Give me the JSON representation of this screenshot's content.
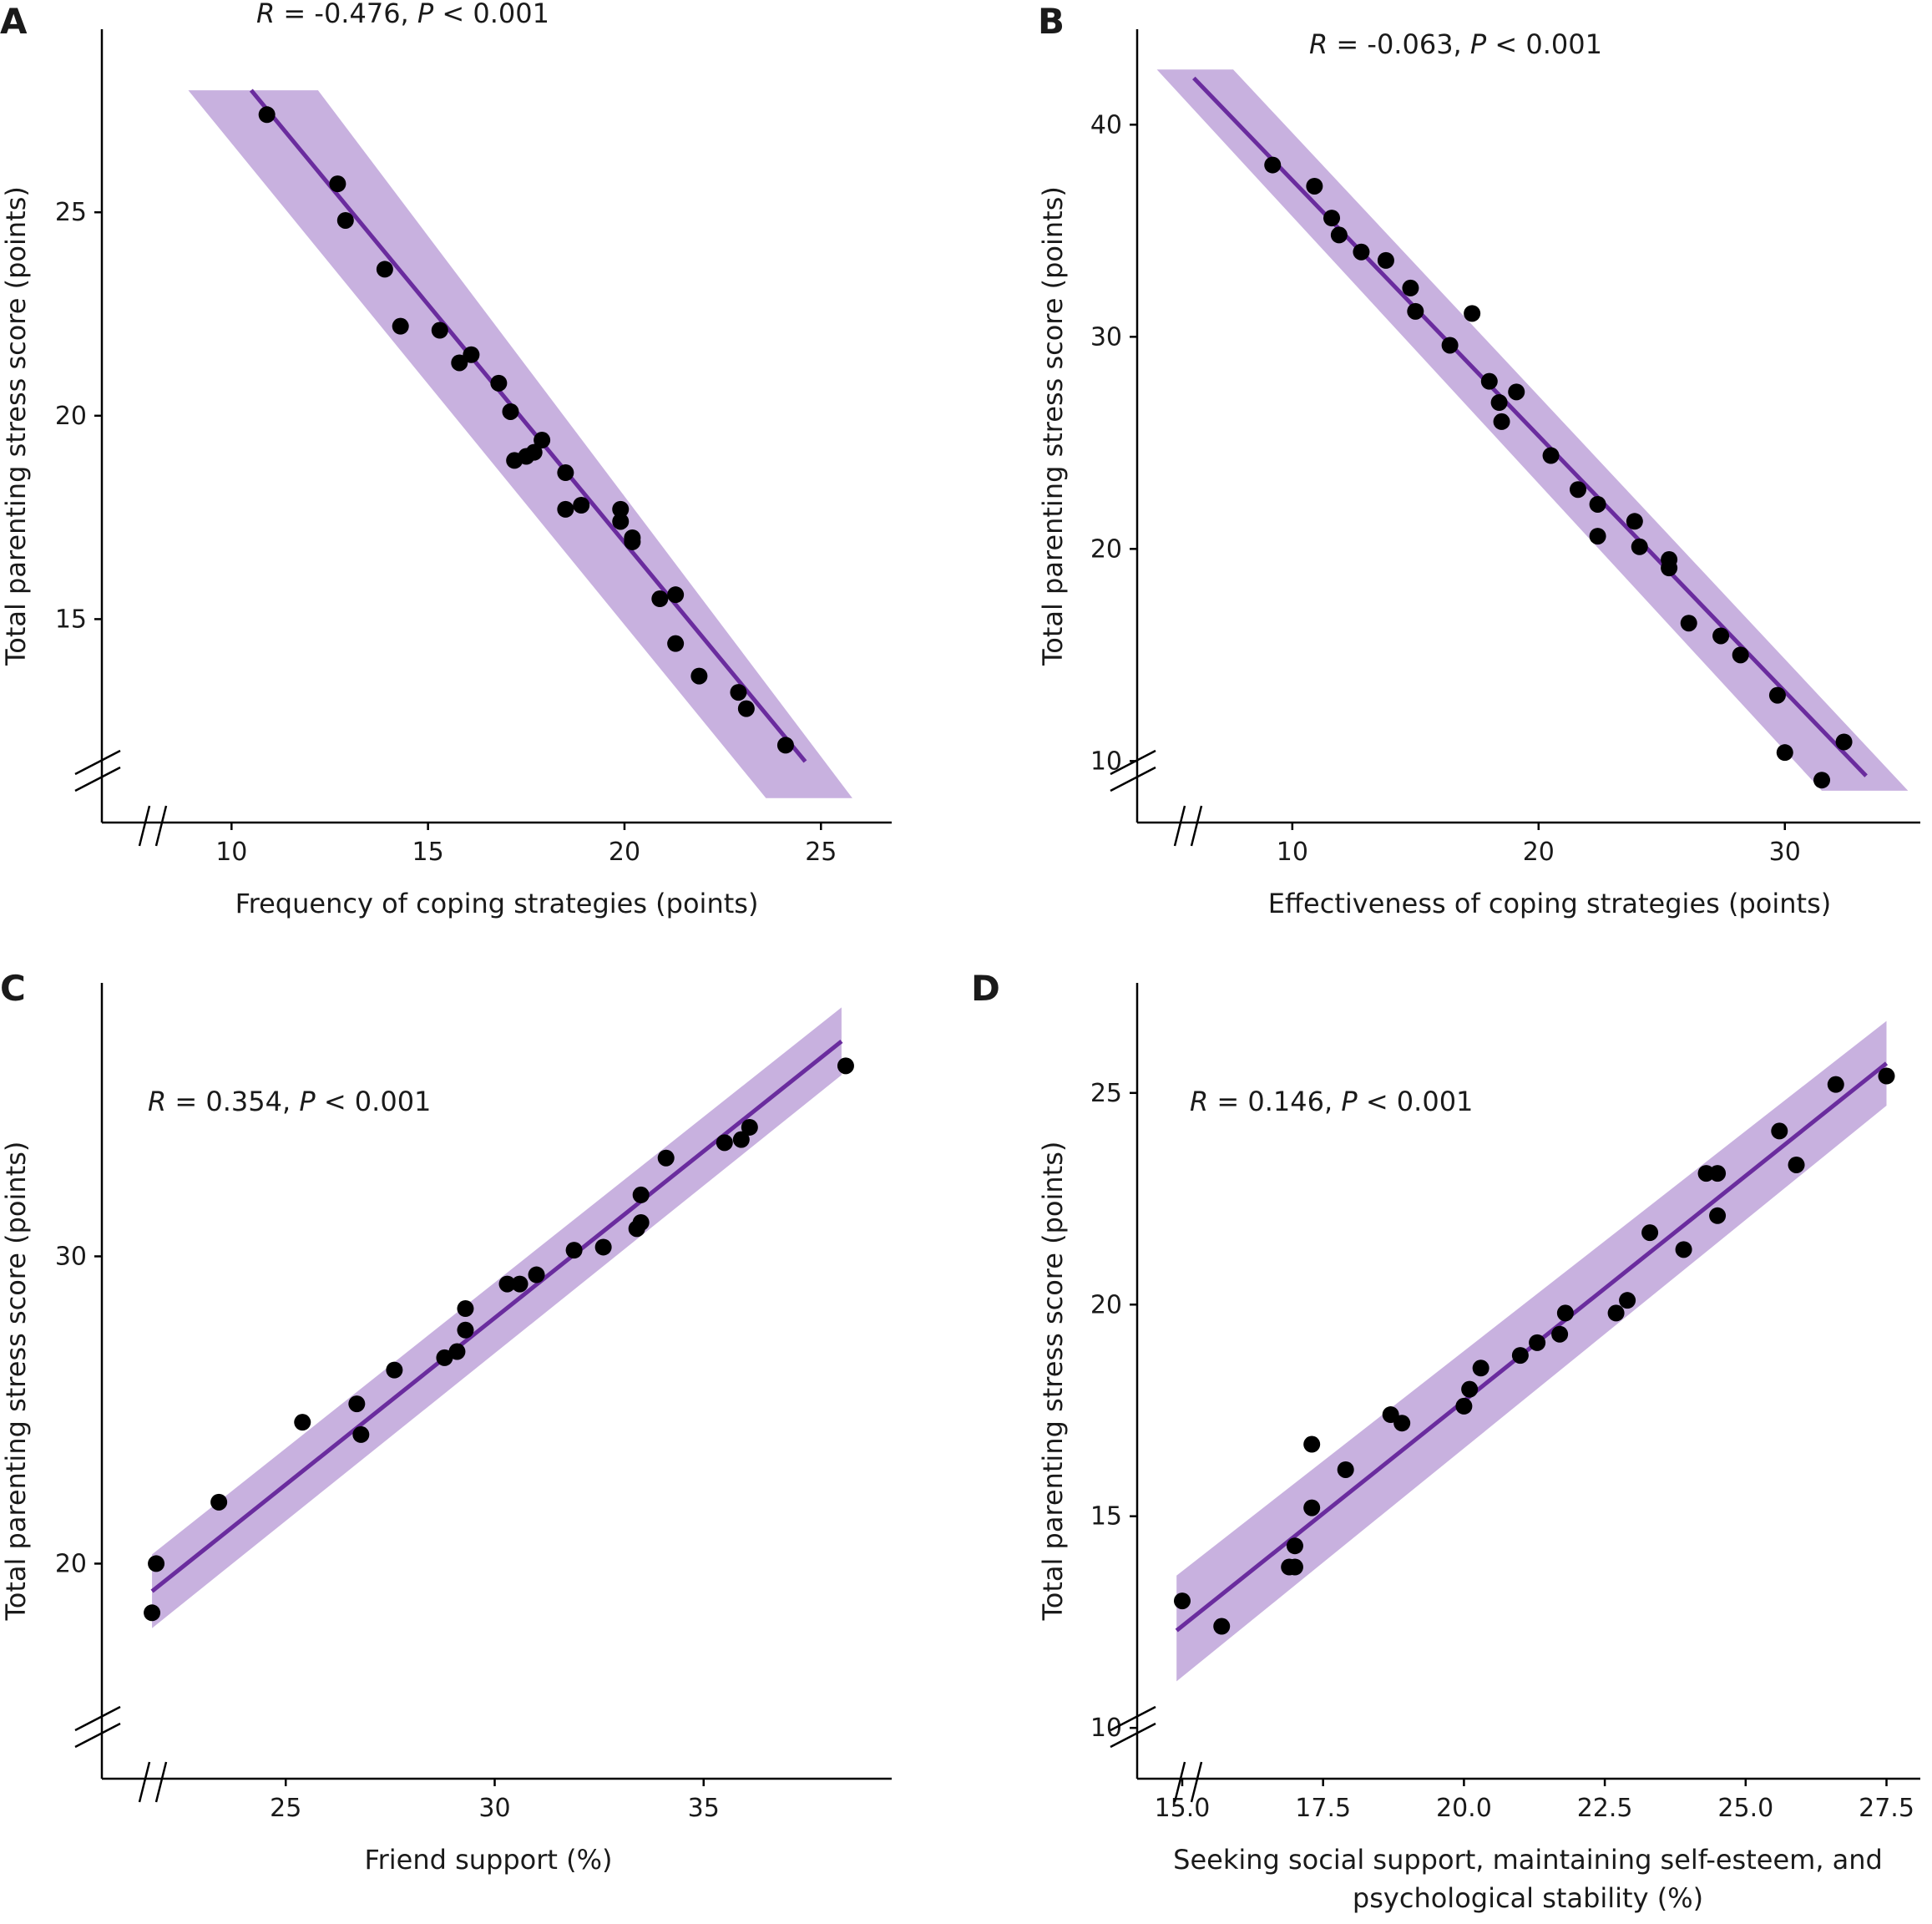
{
  "style": {
    "band_color": "#c2a8dc",
    "line_color": "#6a2c9e",
    "point_color": "#000000",
    "axis_color": "#000000"
  },
  "chart_data": [
    {
      "id": "A",
      "type": "scatter",
      "panel_label": "A",
      "annotation": {
        "r_symbol": "R",
        "r_text": " = -0.476, ",
        "p_symbol": "P",
        "p_text": " < 0.001"
      },
      "xlabel": "Frequency of coping strategies (points)",
      "ylabel": "Total parenting stress score (points)",
      "xlim": [
        6.7,
        26.8
      ],
      "ylim": [
        10,
        29.5
      ],
      "xticks": [
        10,
        15,
        20,
        25
      ],
      "yticks": [
        15,
        20,
        25
      ],
      "x_break": true,
      "y_break": true,
      "fit": {
        "x": [
          10.5,
          24.6
        ],
        "y": [
          28.0,
          11.5
        ]
      },
      "band": {
        "upper": [
          [
            8.9,
            28.0
          ],
          [
            12.2,
            28.0
          ],
          [
            25.8,
            10.6
          ]
        ],
        "lower": [
          [
            23.6,
            10.6
          ],
          [
            8.9,
            28.0
          ]
        ]
      },
      "points": [
        [
          10.9,
          27.4
        ],
        [
          12.7,
          25.7
        ],
        [
          12.9,
          24.8
        ],
        [
          13.9,
          23.6
        ],
        [
          14.3,
          22.2
        ],
        [
          15.3,
          22.1
        ],
        [
          15.8,
          21.3
        ],
        [
          16.1,
          21.5
        ],
        [
          16.8,
          20.8
        ],
        [
          17.1,
          20.1
        ],
        [
          17.2,
          18.9
        ],
        [
          17.5,
          19.0
        ],
        [
          17.7,
          19.1
        ],
        [
          17.9,
          19.4
        ],
        [
          18.5,
          18.6
        ],
        [
          18.5,
          17.7
        ],
        [
          18.9,
          17.8
        ],
        [
          19.9,
          17.7
        ],
        [
          19.9,
          17.4
        ],
        [
          20.2,
          17.0
        ],
        [
          20.2,
          16.9
        ],
        [
          20.9,
          15.5
        ],
        [
          21.3,
          15.6
        ],
        [
          21.3,
          14.4
        ],
        [
          21.9,
          13.6
        ],
        [
          22.9,
          13.2
        ],
        [
          23.1,
          12.8
        ],
        [
          24.1,
          11.9
        ]
      ]
    },
    {
      "id": "B",
      "type": "scatter",
      "panel_label": "B",
      "annotation": {
        "r_symbol": "R",
        "r_text": " = -0.063, ",
        "p_symbol": "P",
        "p_text": " < 0.001"
      },
      "xlabel": "Effectiveness of coping strategies (points)",
      "ylabel": "Total parenting stress score (points)",
      "xlim": [
        3.7,
        35.5
      ],
      "ylim": [
        7.1,
        44.5
      ],
      "xticks": [
        10,
        20,
        30
      ],
      "yticks": [
        10,
        20,
        30,
        40
      ],
      "x_break": true,
      "y_break": true,
      "fit": {
        "x": [
          6.0,
          33.3
        ],
        "y": [
          42.2,
          9.3
        ]
      },
      "band": {
        "upper": [
          [
            4.5,
            42.6
          ],
          [
            7.6,
            42.6
          ],
          [
            35.0,
            8.6
          ]
        ],
        "lower": [
          [
            31.5,
            8.6
          ],
          [
            4.5,
            42.6
          ]
        ]
      },
      "points": [
        [
          9.2,
          38.1
        ],
        [
          10.9,
          37.1
        ],
        [
          11.6,
          35.6
        ],
        [
          11.9,
          34.8
        ],
        [
          12.8,
          34.0
        ],
        [
          13.8,
          33.6
        ],
        [
          14.8,
          32.3
        ],
        [
          15.0,
          31.2
        ],
        [
          16.4,
          29.6
        ],
        [
          17.3,
          31.1
        ],
        [
          18.0,
          27.9
        ],
        [
          18.4,
          26.9
        ],
        [
          18.5,
          26.0
        ],
        [
          19.1,
          27.4
        ],
        [
          20.5,
          24.4
        ],
        [
          21.6,
          22.8
        ],
        [
          22.4,
          22.1
        ],
        [
          22.4,
          20.6
        ],
        [
          23.9,
          21.3
        ],
        [
          24.1,
          20.1
        ],
        [
          25.3,
          19.5
        ],
        [
          25.3,
          19.1
        ],
        [
          26.1,
          16.5
        ],
        [
          27.4,
          15.9
        ],
        [
          28.2,
          15.0
        ],
        [
          29.7,
          13.1
        ],
        [
          30.0,
          10.4
        ],
        [
          31.5,
          9.1
        ],
        [
          32.4,
          10.9
        ]
      ]
    },
    {
      "id": "C",
      "type": "scatter",
      "panel_label": "C",
      "annotation": {
        "r_symbol": "R",
        "r_text": " = 0.354, ",
        "p_symbol": "P",
        "p_text": " < 0.001"
      },
      "xlabel": "Friend support (%)",
      "ylabel": "Total parenting stress score (points)",
      "xlim": [
        20.6,
        39.5
      ],
      "ylim": [
        13.0,
        38.9
      ],
      "xticks": [
        25,
        30,
        35
      ],
      "yticks": [
        20,
        30
      ],
      "x_break": true,
      "y_break": true,
      "fit": {
        "x": [
          21.8,
          38.3
        ],
        "y": [
          19.1,
          37.0
        ]
      },
      "band": {
        "upper": [
          [
            21.8,
            20.3
          ],
          [
            38.3,
            38.1
          ]
        ],
        "lower": [
          [
            38.3,
            35.9
          ],
          [
            21.8,
            17.9
          ]
        ]
      },
      "points": [
        [
          21.8,
          18.4
        ],
        [
          21.9,
          20.0
        ],
        [
          23.4,
          22.0
        ],
        [
          25.4,
          24.6
        ],
        [
          26.7,
          25.2
        ],
        [
          26.8,
          24.2
        ],
        [
          27.6,
          26.3
        ],
        [
          28.8,
          26.7
        ],
        [
          29.1,
          26.9
        ],
        [
          29.3,
          27.6
        ],
        [
          29.3,
          28.3
        ],
        [
          30.3,
          29.1
        ],
        [
          30.6,
          29.1
        ],
        [
          31.0,
          29.4
        ],
        [
          31.9,
          30.2
        ],
        [
          32.6,
          30.3
        ],
        [
          33.4,
          30.9
        ],
        [
          33.5,
          31.1
        ],
        [
          33.5,
          32.0
        ],
        [
          34.1,
          33.2
        ],
        [
          35.5,
          33.7
        ],
        [
          35.9,
          33.8
        ],
        [
          36.1,
          34.2
        ],
        [
          38.4,
          36.2
        ]
      ]
    },
    {
      "id": "D",
      "type": "scatter",
      "panel_label": "D",
      "annotation": {
        "r_symbol": "R",
        "r_text": " = 0.146, ",
        "p_symbol": "P",
        "p_text": " < 0.001"
      },
      "xlabel": "Seeking social support, maintaining self-esteem, and",
      "xlabel2": "psychological stability (%)",
      "ylabel": "Total parenting stress score (points)",
      "xlim": [
        14.2,
        28.1
      ],
      "ylim": [
        8.8,
        27.6
      ],
      "xticks": [
        15.0,
        17.5,
        20.0,
        22.5,
        25.0,
        27.5
      ],
      "xtick_labels": [
        "15.0",
        "17.5",
        "20.0",
        "22.5",
        "25.0",
        "27.5"
      ],
      "yticks": [
        10,
        15,
        20,
        25
      ],
      "x_break": true,
      "y_break": true,
      "fit": {
        "x": [
          14.9,
          27.5
        ],
        "y": [
          12.3,
          25.7
        ]
      },
      "band": {
        "upper": [
          [
            14.9,
            13.6
          ],
          [
            27.5,
            26.7
          ]
        ],
        "lower": [
          [
            27.5,
            24.7
          ],
          [
            14.9,
            11.1
          ]
        ]
      },
      "points": [
        [
          15.0,
          13.0
        ],
        [
          15.7,
          12.4
        ],
        [
          16.9,
          13.8
        ],
        [
          17.0,
          13.8
        ],
        [
          17.0,
          14.3
        ],
        [
          17.3,
          15.2
        ],
        [
          17.3,
          16.7
        ],
        [
          17.9,
          16.1
        ],
        [
          18.7,
          17.4
        ],
        [
          18.9,
          17.2
        ],
        [
          20.0,
          17.6
        ],
        [
          20.1,
          18.0
        ],
        [
          20.3,
          18.5
        ],
        [
          21.0,
          18.8
        ],
        [
          21.3,
          19.1
        ],
        [
          21.7,
          19.3
        ],
        [
          21.8,
          19.8
        ],
        [
          22.7,
          19.8
        ],
        [
          22.9,
          20.1
        ],
        [
          23.3,
          21.7
        ],
        [
          23.9,
          21.3
        ],
        [
          24.3,
          23.1
        ],
        [
          24.5,
          23.1
        ],
        [
          24.5,
          22.1
        ],
        [
          25.6,
          24.1
        ],
        [
          25.9,
          23.3
        ],
        [
          26.6,
          25.2
        ],
        [
          27.5,
          25.4
        ]
      ]
    }
  ]
}
